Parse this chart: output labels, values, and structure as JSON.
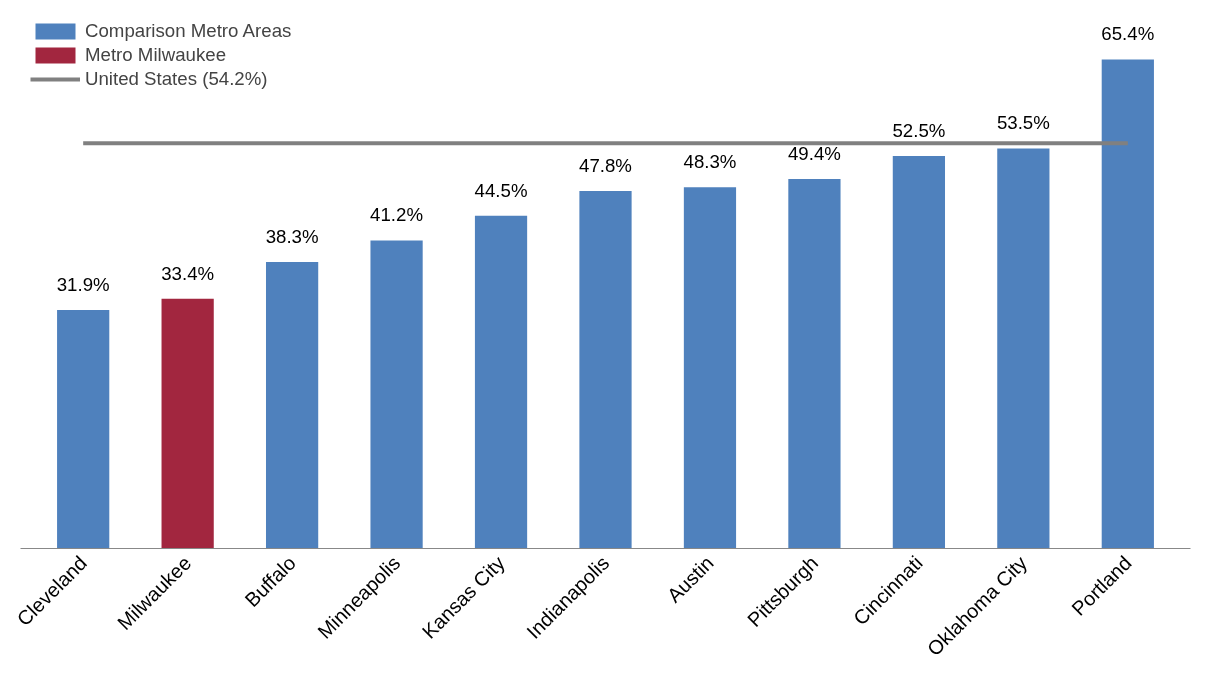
{
  "chart_data": {
    "type": "bar",
    "categories": [
      "Cleveland",
      "Milwaukee",
      "Buffalo",
      "Minneapolis",
      "Kansas City",
      "Indianapolis",
      "Austin",
      "Pittsburgh",
      "Cincinnati",
      "Oklahoma City",
      "Portland"
    ],
    "series": [
      {
        "name": "Comparison Metro Areas",
        "color": "#4f81bd",
        "values": [
          31.9,
          null,
          38.3,
          41.2,
          44.5,
          47.8,
          48.3,
          49.4,
          52.5,
          53.5,
          65.4
        ],
        "value_labels": [
          "31.9%",
          null,
          "38.3%",
          "41.2%",
          "44.5%",
          "47.8%",
          "48.3%",
          "49.4%",
          "52.5%",
          "53.5%",
          "65.4%"
        ]
      },
      {
        "name": "Metro Milwaukee",
        "color": "#a2263f",
        "values": [
          null,
          33.4,
          null,
          null,
          null,
          null,
          null,
          null,
          null,
          null,
          null
        ],
        "value_labels": [
          null,
          "33.4%",
          null,
          null,
          null,
          null,
          null,
          null,
          null,
          null,
          null
        ]
      }
    ],
    "ref_lines": [
      {
        "axis": "y",
        "value": 54.2,
        "label": "United States (54.2%)",
        "color": "#808080",
        "line_style": "solid"
      }
    ],
    "legend": "top left",
    "grid": false
  }
}
